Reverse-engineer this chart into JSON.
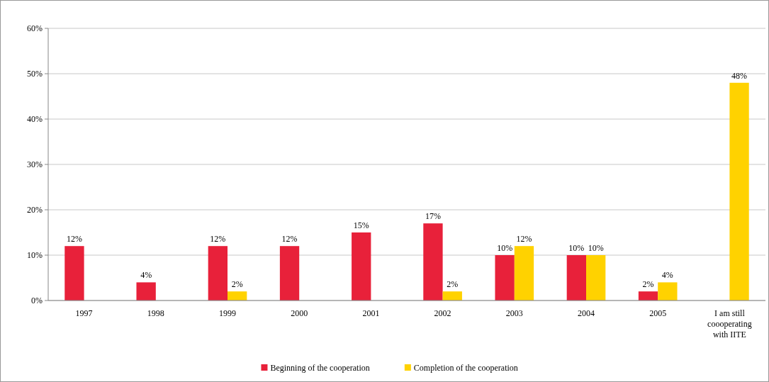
{
  "chart_data": {
    "type": "bar",
    "categories": [
      "1997",
      "1998",
      "1999",
      "2000",
      "2001",
      "2002",
      "2003",
      "2004",
      "2005",
      "I am still coooperating with IITE"
    ],
    "series": [
      {
        "name": "Beginning of the cooperation",
        "color": "#e8213a",
        "values": [
          12,
          4,
          12,
          12,
          15,
          17,
          10,
          10,
          2,
          null
        ],
        "value_labels": [
          "12%",
          "4%",
          "12%",
          "12%",
          "15%",
          "17%",
          "10%",
          "10%",
          "2%",
          null
        ]
      },
      {
        "name": "Completion of the cooperation",
        "color": "#ffd200",
        "values": [
          null,
          null,
          2,
          null,
          null,
          2,
          12,
          10,
          4,
          48
        ],
        "value_labels": [
          null,
          null,
          "2%",
          null,
          null,
          "2%",
          "12%",
          "10%",
          "4%",
          "48%"
        ]
      }
    ],
    "ylim": [
      0,
      60
    ],
    "yticks": [
      {
        "value": 0,
        "label": "0%"
      },
      {
        "value": 10,
        "label": "10%"
      },
      {
        "value": 20,
        "label": "20%"
      },
      {
        "value": 30,
        "label": "30%"
      },
      {
        "value": 40,
        "label": "40%"
      },
      {
        "value": 50,
        "label": "50%"
      },
      {
        "value": 60,
        "label": "60%"
      }
    ],
    "grid": "y",
    "legend": "bottom"
  }
}
